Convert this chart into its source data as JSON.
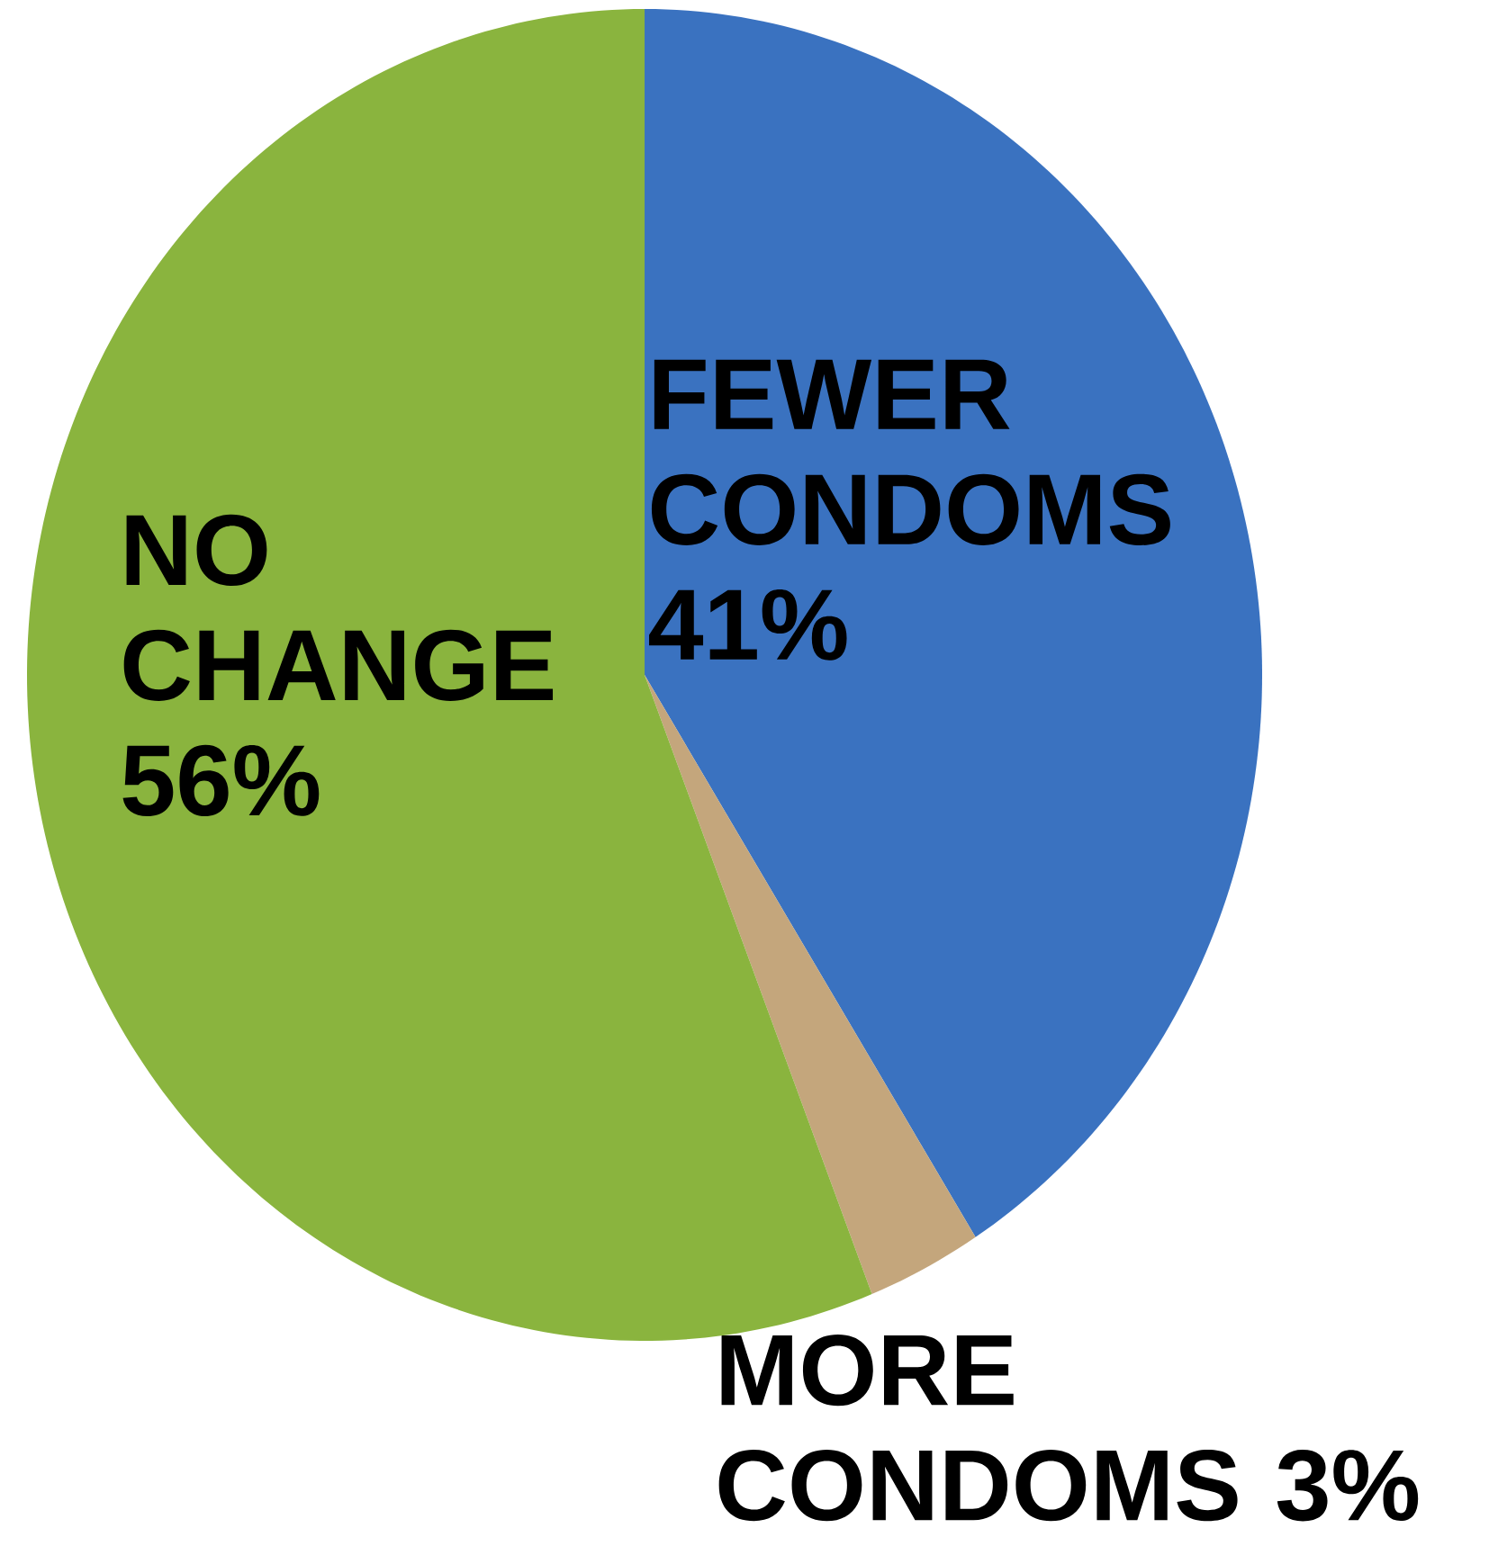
{
  "chart_data": {
    "type": "pie",
    "categories": [
      "FEWER CONDOMS",
      "MORE CONDOMS",
      "NO CHANGE"
    ],
    "values": [
      41,
      3,
      56
    ],
    "value_labels": [
      "41%",
      "3%",
      "56%"
    ],
    "colors": [
      "#3a72c0",
      "#c4a67c",
      "#8ab43e"
    ]
  }
}
